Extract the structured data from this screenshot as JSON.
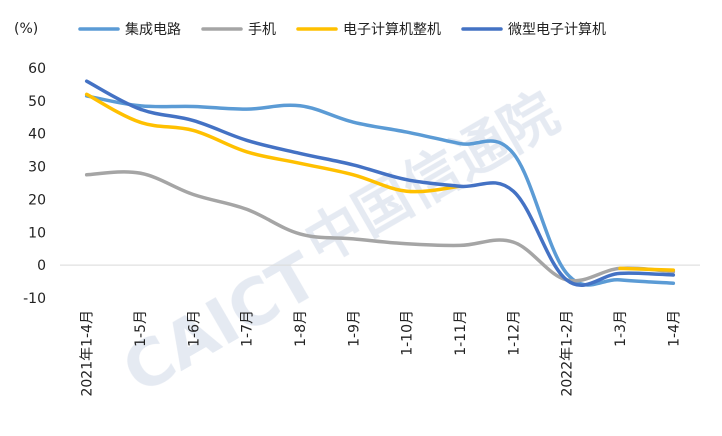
{
  "watermark": {
    "text_latin": "CAICT",
    "text_cn": "中国信通院"
  },
  "chart_data": {
    "type": "line",
    "unit_label": "(%)",
    "categories": [
      "2021年1-4月",
      "1-5月",
      "1-6月",
      "1-7月",
      "1-8月",
      "1-9月",
      "1-10月",
      "1-11月",
      "1-12月",
      "2022年1-2月",
      "1-3月",
      "1-4月"
    ],
    "ylim": [
      -10,
      60
    ],
    "yticks": [
      -10,
      0,
      10,
      20,
      30,
      40,
      50,
      60
    ],
    "grid": false,
    "legend_position": "top",
    "series": [
      {
        "name": "集成电路",
        "color": "#5B9BD5",
        "values": [
          51.5,
          48.5,
          48.3,
          47.5,
          48.5,
          43.5,
          40.5,
          37.0,
          34.0,
          -2.5,
          -4.5,
          -5.5
        ]
      },
      {
        "name": "手机",
        "color": "#A5A5A5",
        "values": [
          27.5,
          28.0,
          21.5,
          17.0,
          9.5,
          8.0,
          6.5,
          6.0,
          7.0,
          -4.5,
          -1.0,
          -2.0
        ]
      },
      {
        "name": "电子计算机整机",
        "color": "#FFC000",
        "values": [
          52.0,
          43.5,
          41.0,
          34.5,
          31.0,
          27.5,
          22.5,
          24.0,
          null,
          null,
          -1.0,
          -1.5
        ]
      },
      {
        "name": "微型电子计算机",
        "color": "#4472C4",
        "values": [
          56.0,
          47.5,
          44.0,
          38.0,
          34.0,
          30.5,
          26.0,
          24.0,
          22.5,
          -4.5,
          -2.5,
          -3.0
        ]
      }
    ]
  }
}
